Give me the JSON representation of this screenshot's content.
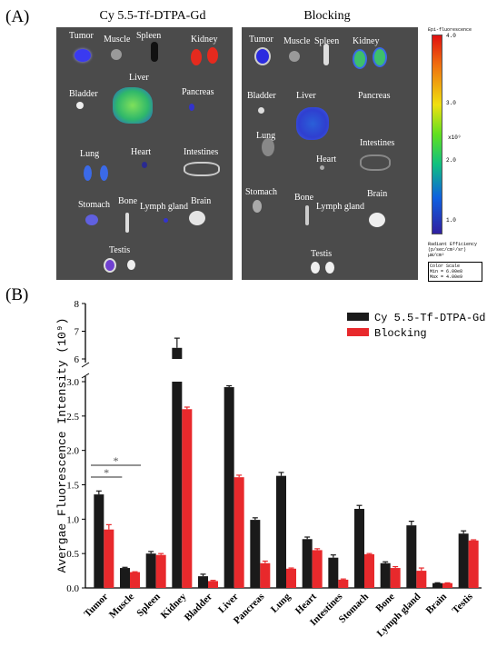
{
  "panel_a": {
    "label": "(A)",
    "left_title": "Cy 5.5-Tf-DTPA-Gd",
    "right_title": "Blocking",
    "left_labels": [
      "Tumor",
      "Muscle",
      "Spleen",
      "Kidney",
      "Bladder",
      "Liver",
      "Pancreas",
      "Lung",
      "Heart",
      "Intestines",
      "Stomach",
      "Bone",
      "Lymph gland",
      "Brain",
      "Testis"
    ],
    "right_labels": [
      "Tumor",
      "Muscle",
      "Spleen",
      "Kidney",
      "Bladder",
      "Liver",
      "Pancreas",
      "Lung",
      "Heart",
      "Intestines",
      "Stomach",
      "Bone",
      "Lymph gland",
      "Brain",
      "Testis"
    ],
    "colorbar": {
      "title": "Epi-fluorescence",
      "ticks": [
        "4.0",
        "3.0",
        "2.0",
        "1.0"
      ],
      "unit": "x10⁹",
      "caption": [
        "Radiant Efficiency",
        "(p/sec/cm²/sr)",
        "μW/cm²"
      ],
      "scale": [
        "Color Scale",
        "Min = 6.00e8",
        "Max = 4.00e9"
      ]
    }
  },
  "panel_b": {
    "label": "(B)"
  },
  "chart_data": {
    "type": "bar",
    "ylabel": "Avergae Fluorescence Intensity (10⁹)",
    "categories": [
      "Tumor",
      "Muscle",
      "Spleen",
      "Kidney",
      "Bladder",
      "Liver",
      "Pancreas",
      "Lung",
      "Heart",
      "Intestines",
      "Stomach",
      "Bone",
      "Lymph gland",
      "Brain",
      "Testis"
    ],
    "series": [
      {
        "name": "Cy 5.5-Tf-DTPA-Gd",
        "color": "#1a1a1a",
        "values": [
          1.36,
          0.29,
          0.5,
          6.4,
          0.17,
          2.92,
          0.99,
          1.63,
          0.71,
          0.44,
          1.15,
          0.36,
          0.91,
          0.07,
          0.79
        ],
        "errors": [
          0.05,
          0.01,
          0.03,
          0.35,
          0.03,
          0.02,
          0.03,
          0.05,
          0.03,
          0.04,
          0.05,
          0.02,
          0.06,
          0.005,
          0.04
        ]
      },
      {
        "name": "Blocking",
        "color": "#e8292c",
        "values": [
          0.85,
          0.23,
          0.48,
          2.6,
          0.1,
          1.61,
          0.36,
          0.28,
          0.55,
          0.12,
          0.49,
          0.29,
          0.25,
          0.07,
          0.69
        ],
        "errors": [
          0.07,
          0.005,
          0.02,
          0.03,
          0.01,
          0.03,
          0.03,
          0.01,
          0.02,
          0.01,
          0.01,
          0.02,
          0.04,
          0.004,
          0.01
        ]
      }
    ],
    "y_axis": {
      "broken": true,
      "lower_range": [
        0,
        3.0
      ],
      "lower_ticks": [
        "0.0",
        "0.5",
        "1.0",
        "1.5",
        "2.0",
        "2.5",
        "3.0"
      ],
      "upper_range": [
        6,
        8
      ],
      "upper_ticks": [
        "6",
        "7",
        "8"
      ]
    },
    "significance": [
      {
        "label": "*"
      },
      {
        "label": "*"
      }
    ],
    "legend_position": "top-right"
  }
}
